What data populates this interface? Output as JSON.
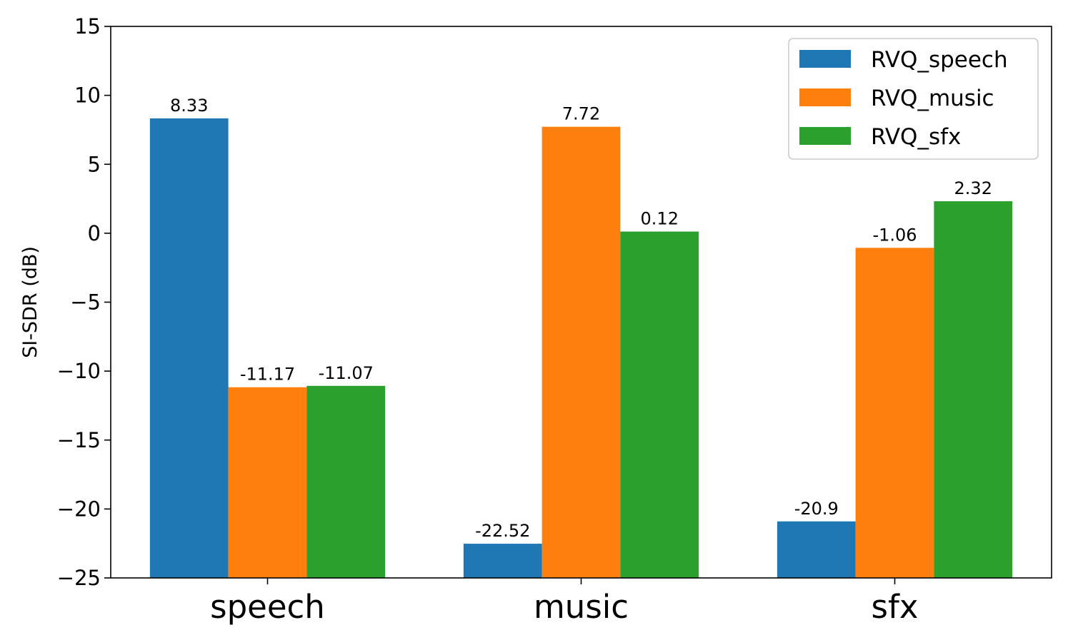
{
  "chart_data": {
    "type": "bar",
    "title": "",
    "xlabel": "",
    "ylabel": "SI-SDR (dB)",
    "categories": [
      "speech",
      "music",
      "sfx"
    ],
    "series": [
      {
        "name": "RVQ_speech",
        "color": "#1f77b4",
        "values": [
          8.33,
          -22.52,
          -20.9
        ],
        "value_labels": [
          "8.33",
          "-22.52",
          "-20.9"
        ]
      },
      {
        "name": "RVQ_music",
        "color": "#ff7f0e",
        "values": [
          -11.17,
          7.72,
          -1.06
        ],
        "value_labels": [
          "-11.17",
          "7.72",
          "-1.06"
        ]
      },
      {
        "name": "RVQ_sfx",
        "color": "#2ca02c",
        "values": [
          -11.07,
          0.12,
          2.32
        ],
        "value_labels": [
          "-11.07",
          "0.12",
          "2.32"
        ]
      }
    ],
    "ylim": [
      -25,
      15
    ],
    "yticks": [
      15,
      10,
      5,
      0,
      -5,
      -10,
      -15,
      -20,
      -25
    ],
    "ytick_labels": [
      "15",
      "10",
      "5",
      "0",
      "−5",
      "−10",
      "−15",
      "−20",
      "−25"
    ],
    "grid": false,
    "legend_position": "top-right"
  }
}
